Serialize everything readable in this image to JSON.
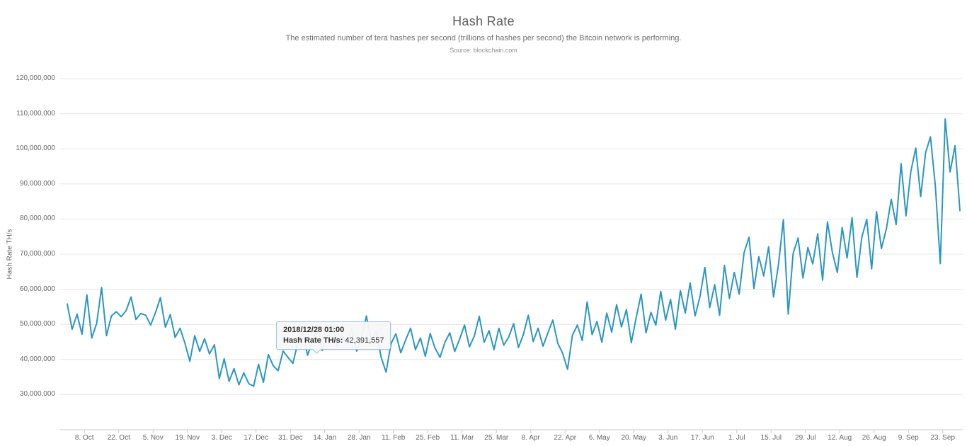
{
  "header": {
    "title": "Hash Rate",
    "subtitle": "The estimated number of tera hashes per second (trillions of hashes per second) the Bitcoin network is performing.",
    "source": "Source: blockchain.com"
  },
  "tooltip": {
    "date": "2018/12/28 01:00",
    "label": "Hash Rate TH/s:",
    "value": "42,391,557"
  },
  "chart_data": {
    "type": "line",
    "title": "Hash Rate",
    "xlabel": "",
    "ylabel": "Hash Rate TH/s",
    "series_name": "Hash Rate TH/s",
    "unit": "TH/s",
    "line_color": "#2b96c4",
    "grid_color": "#e6e6e6",
    "axis_color": "#c8c8c8",
    "label_color": "#666666",
    "legend": "none",
    "grid": "horizontal-only",
    "ylim": [
      20000000,
      120000000
    ],
    "y_ticks": [
      {
        "value": 30000000,
        "label": "30,000,000"
      },
      {
        "value": 40000000,
        "label": "40,000,000"
      },
      {
        "value": 50000000,
        "label": "50,000,000"
      },
      {
        "value": 60000000,
        "label": "60,000,000"
      },
      {
        "value": 70000000,
        "label": "70,000,000"
      },
      {
        "value": 80000000,
        "label": "80,000,000"
      },
      {
        "value": 90000000,
        "label": "90,000,000"
      },
      {
        "value": 100000000,
        "label": "100,000,000"
      },
      {
        "value": 110000000,
        "label": "110,000,000"
      },
      {
        "value": 120000000,
        "label": "120,000,000"
      }
    ],
    "start_date": "2018-10-01",
    "step_days": 2,
    "x_total_days": 364,
    "x_ticks": [
      {
        "day": 7,
        "label": "8. Oct"
      },
      {
        "day": 21,
        "label": "22. Oct"
      },
      {
        "day": 35,
        "label": "5. Nov"
      },
      {
        "day": 49,
        "label": "19. Nov"
      },
      {
        "day": 63,
        "label": "3. Dec"
      },
      {
        "day": 77,
        "label": "17. Dec"
      },
      {
        "day": 91,
        "label": "31. Dec"
      },
      {
        "day": 105,
        "label": "14. Jan"
      },
      {
        "day": 119,
        "label": "28. Jan"
      },
      {
        "day": 133,
        "label": "11. Feb"
      },
      {
        "day": 147,
        "label": "25. Feb"
      },
      {
        "day": 161,
        "label": "11. Mar"
      },
      {
        "day": 175,
        "label": "25. Mar"
      },
      {
        "day": 189,
        "label": "8. Apr"
      },
      {
        "day": 203,
        "label": "22. Apr"
      },
      {
        "day": 217,
        "label": "6. May"
      },
      {
        "day": 231,
        "label": "20. May"
      },
      {
        "day": 245,
        "label": "3. Jun"
      },
      {
        "day": 259,
        "label": "17. Jun"
      },
      {
        "day": 273,
        "label": "1. Jul"
      },
      {
        "day": 287,
        "label": "15. Jul"
      },
      {
        "day": 301,
        "label": "29. Jul"
      },
      {
        "day": 315,
        "label": "12. Aug"
      },
      {
        "day": 329,
        "label": "26. Aug"
      },
      {
        "day": 343,
        "label": "9. Sep"
      },
      {
        "day": 357,
        "label": "23. Sep"
      }
    ],
    "values_millions": [
      55.8,
      48.6,
      52.9,
      47.2,
      58.4,
      46.1,
      50.3,
      60.5,
      46.8,
      52.4,
      53.6,
      52.2,
      53.9,
      57.8,
      51.4,
      53.1,
      52.6,
      49.8,
      53.4,
      57.6,
      49.2,
      52.8,
      46.3,
      48.9,
      44.6,
      39.5,
      46.8,
      42.3,
      45.9,
      41.6,
      44.2,
      34.6,
      40.2,
      33.8,
      37.4,
      32.8,
      36.2,
      33.1,
      32.4,
      38.6,
      33.5,
      41.4,
      38.2,
      36.8,
      42.391557,
      40.6,
      38.9,
      44.6,
      47.8,
      41.2,
      45.3,
      49.2,
      42.6,
      46.4,
      50.3,
      43.8,
      47.1,
      44.3,
      48.7,
      42.4,
      46.2,
      52.4,
      44.8,
      48.2,
      40.6,
      36.4,
      44.5,
      47.3,
      41.9,
      45.6,
      48.9,
      42.8,
      46.1,
      40.9,
      47.4,
      43.2,
      40.6,
      44.9,
      47.6,
      42.3,
      45.8,
      49.8,
      43.6,
      46.7,
      52.3,
      44.9,
      48.2,
      42.8,
      48.9,
      44.1,
      46.4,
      50.2,
      43.4,
      47.2,
      52.6,
      45.1,
      48.9,
      43.8,
      47.6,
      51.2,
      44.6,
      41.8,
      37.2,
      46.9,
      49.8,
      45.4,
      56.4,
      47.1,
      50.8,
      44.9,
      53.2,
      47.8,
      55.6,
      49.3,
      54.2,
      44.8,
      51.9,
      58.6,
      47.6,
      53.4,
      49.8,
      59.4,
      51.2,
      57.1,
      48.6,
      59.6,
      53.2,
      61.8,
      52.4,
      57.9,
      66.2,
      54.8,
      61.3,
      52.6,
      66.8,
      57.4,
      64.8,
      58.6,
      70.4,
      74.8,
      60.2,
      69.3,
      63.8,
      72.1,
      57.8,
      66.9,
      79.8,
      52.9,
      70.2,
      74.6,
      63.2,
      71.9,
      67.2,
      75.8,
      62.6,
      79.2,
      70.4,
      64.8,
      77.6,
      68.9,
      80.4,
      63.4,
      74.8,
      79.9,
      65.8,
      82.1,
      71.6,
      77.2,
      85.6,
      78.4,
      95.8,
      80.9,
      93.6,
      100.2,
      86.4,
      98.9,
      103.4,
      89.2,
      67.3,
      108.5,
      93.4,
      100.9,
      82.4
    ]
  }
}
